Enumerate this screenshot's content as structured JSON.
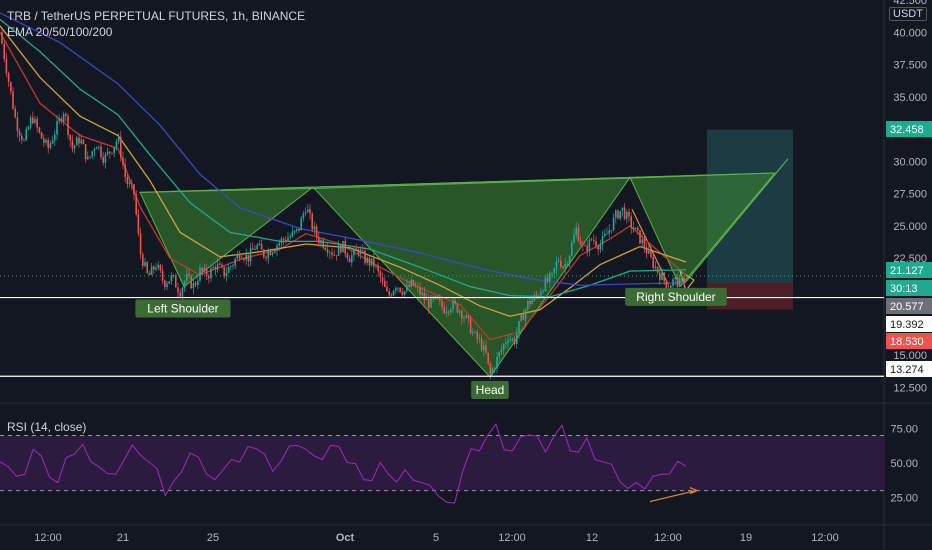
{
  "header": {
    "title": "TRB / TetherUS PERPETUAL FUTURES, 1h, BINANCE",
    "indicator": "EMA 20/50/100/200",
    "currency": "USDT",
    "rsi_label": "RSI (14, close)"
  },
  "colors": {
    "background": "#131722",
    "up": "#26a69a",
    "down": "#ef5350",
    "pattern_fill": "#3c8a2f",
    "label_bg": "#3d6b35",
    "ema20": "#c0392b",
    "ema50": "#d2a23c",
    "ema100": "#1fa98f",
    "ema200": "#3949c8",
    "rsi_line": "#9c27b0",
    "rsi_band": "#2a1b3f",
    "target_zone": "#1f4a4e",
    "stop_zone": "#5a1f26"
  },
  "chart_data": [
    {
      "type": "candlestick",
      "title": "TRB / TetherUS PERPETUAL FUTURES, 1h, BINANCE",
      "x_ticks": [
        "12:00",
        "21",
        "25",
        "Oct",
        "5",
        "12:00",
        "12",
        "12:00",
        "19",
        "12:00"
      ],
      "y_ticks": [
        12.5,
        15.0,
        17.5,
        20.0,
        22.5,
        25.0,
        27.5,
        30.0,
        32.5,
        35.0,
        37.5,
        40.0,
        42.5
      ],
      "ylim": [
        11.9,
        42.5
      ],
      "price_labels": [
        {
          "text": "32.458",
          "color": "#1fa98f"
        },
        {
          "text": "21.127",
          "color": "#1fa98f"
        },
        {
          "text": "30:13",
          "color": "#1fa98f"
        },
        {
          "text": "20.577",
          "color": "#6e7078"
        },
        {
          "text": "19.392",
          "color": "#ffffff"
        },
        {
          "text": "18.530",
          "color": "#ef5350"
        },
        {
          "text": "13.274",
          "color": "#ffffff"
        }
      ],
      "horizontal_lines": [
        19.45,
        13.35
      ],
      "annotations": [
        "Left Shoulder",
        "Head",
        "Right Shoulder"
      ],
      "pattern": "inverse head and shoulders",
      "neckline": {
        "from": 27.6,
        "to": 29.1
      },
      "ema_periods": [
        20,
        50,
        100,
        200
      ],
      "long_position": {
        "target": 32.458,
        "entry": 20.577,
        "stop": 18.53
      },
      "price_path": [
        [
          0,
          40.0
        ],
        [
          8,
          36.5
        ],
        [
          16,
          33.0
        ],
        [
          24,
          31.5
        ],
        [
          32,
          33.5
        ],
        [
          40,
          32.0
        ],
        [
          48,
          31.0
        ],
        [
          56,
          32.5
        ],
        [
          64,
          34.0
        ],
        [
          72,
          31.0
        ],
        [
          80,
          31.8
        ],
        [
          88,
          30.0
        ],
        [
          96,
          31.5
        ],
        [
          104,
          30.2
        ],
        [
          112,
          31.0
        ],
        [
          118,
          31.8
        ],
        [
          126,
          28.5
        ],
        [
          134,
          27.5
        ],
        [
          140,
          23.0
        ],
        [
          148,
          21.0
        ],
        [
          156,
          22.0
        ],
        [
          164,
          20.6
        ],
        [
          172,
          21.0
        ],
        [
          180,
          19.9
        ],
        [
          186,
          21.0
        ],
        [
          194,
          20.3
        ],
        [
          200,
          21.5
        ],
        [
          208,
          21.2
        ],
        [
          216,
          22.0
        ],
        [
          224,
          21.3
        ],
        [
          232,
          22.0
        ],
        [
          240,
          23.0
        ],
        [
          248,
          22.5
        ],
        [
          256,
          23.5
        ],
        [
          264,
          22.8
        ],
        [
          272,
          23.2
        ],
        [
          280,
          23.8
        ],
        [
          290,
          24.2
        ],
        [
          298,
          24.6
        ],
        [
          306,
          26.6
        ],
        [
          312,
          25.0
        ],
        [
          318,
          24.0
        ],
        [
          326,
          23.5
        ],
        [
          334,
          22.8
        ],
        [
          342,
          23.5
        ],
        [
          350,
          22.5
        ],
        [
          358,
          23.2
        ],
        [
          366,
          22.3
        ],
        [
          374,
          22.0
        ],
        [
          380,
          21.0
        ],
        [
          388,
          19.5
        ],
        [
          396,
          20.5
        ],
        [
          404,
          19.9
        ],
        [
          412,
          20.5
        ],
        [
          420,
          19.8
        ],
        [
          428,
          19.0
        ],
        [
          436,
          19.2
        ],
        [
          444,
          18.6
        ],
        [
          452,
          18.9
        ],
        [
          460,
          18.5
        ],
        [
          468,
          17.5
        ],
        [
          474,
          16.5
        ],
        [
          480,
          16.0
        ],
        [
          486,
          15.0
        ],
        [
          490,
          13.4
        ],
        [
          496,
          14.5
        ],
        [
          502,
          15.5
        ],
        [
          508,
          16.5
        ],
        [
          514,
          16.0
        ],
        [
          520,
          17.5
        ],
        [
          528,
          19.0
        ],
        [
          536,
          19.5
        ],
        [
          544,
          20.5
        ],
        [
          552,
          21.0
        ],
        [
          558,
          22.5
        ],
        [
          564,
          21.8
        ],
        [
          570,
          23.0
        ],
        [
          576,
          24.8
        ],
        [
          584,
          23.0
        ],
        [
          592,
          24.0
        ],
        [
          600,
          23.5
        ],
        [
          608,
          24.5
        ],
        [
          616,
          25.8
        ],
        [
          622,
          26.3
        ],
        [
          628,
          25.5
        ],
        [
          636,
          24.5
        ],
        [
          644,
          23.5
        ],
        [
          650,
          22.5
        ],
        [
          656,
          21.7
        ],
        [
          662,
          21.0
        ],
        [
          668,
          20.3
        ],
        [
          674,
          20.8
        ],
        [
          680,
          20.5
        ],
        [
          686,
          21.0
        ]
      ],
      "ema_paths": {
        "ema20": [
          [
            0,
            40.0
          ],
          [
            40,
            34.5
          ],
          [
            80,
            32.0
          ],
          [
            118,
            31.0
          ],
          [
            140,
            26.5
          ],
          [
            170,
            22.5
          ],
          [
            200,
            21.2
          ],
          [
            240,
            22.4
          ],
          [
            280,
            23.2
          ],
          [
            306,
            24.4
          ],
          [
            340,
            23.6
          ],
          [
            380,
            21.8
          ],
          [
            420,
            20.2
          ],
          [
            460,
            18.9
          ],
          [
            490,
            16.2
          ],
          [
            520,
            16.8
          ],
          [
            552,
            19.8
          ],
          [
            580,
            22.7
          ],
          [
            610,
            24.0
          ],
          [
            630,
            25.0
          ],
          [
            656,
            23.2
          ],
          [
            686,
            21.2
          ]
        ],
        "ema50": [
          [
            0,
            40.5
          ],
          [
            40,
            36.5
          ],
          [
            80,
            33.5
          ],
          [
            118,
            32.0
          ],
          [
            150,
            28.5
          ],
          [
            180,
            24.5
          ],
          [
            220,
            22.6
          ],
          [
            260,
            23.0
          ],
          [
            306,
            23.6
          ],
          [
            350,
            23.3
          ],
          [
            400,
            21.8
          ],
          [
            440,
            20.4
          ],
          [
            480,
            18.8
          ],
          [
            510,
            18.0
          ],
          [
            540,
            18.5
          ],
          [
            570,
            20.2
          ],
          [
            600,
            22.0
          ],
          [
            640,
            23.4
          ],
          [
            686,
            22.2
          ]
        ],
        "ema100": [
          [
            0,
            41.0
          ],
          [
            40,
            38.5
          ],
          [
            80,
            35.6
          ],
          [
            118,
            33.6
          ],
          [
            150,
            30.5
          ],
          [
            190,
            26.8
          ],
          [
            230,
            24.5
          ],
          [
            280,
            23.8
          ],
          [
            320,
            23.8
          ],
          [
            370,
            23.2
          ],
          [
            420,
            21.8
          ],
          [
            470,
            20.3
          ],
          [
            510,
            19.6
          ],
          [
            550,
            19.5
          ],
          [
            590,
            20.4
          ],
          [
            630,
            21.5
          ],
          [
            686,
            21.6
          ]
        ],
        "ema200": [
          [
            0,
            41.5
          ],
          [
            60,
            39.2
          ],
          [
            118,
            36.0
          ],
          [
            160,
            32.8
          ],
          [
            200,
            29.0
          ],
          [
            240,
            26.4
          ],
          [
            300,
            24.8
          ],
          [
            360,
            23.9
          ],
          [
            420,
            22.9
          ],
          [
            480,
            21.7
          ],
          [
            530,
            20.9
          ],
          [
            580,
            20.4
          ],
          [
            630,
            20.5
          ],
          [
            686,
            20.6
          ]
        ]
      }
    },
    {
      "type": "line",
      "title": "RSI (14, close)",
      "y_ticks": [
        25.0,
        50.0,
        75.0
      ],
      "ylim": [
        5,
        90
      ],
      "bands": [
        30,
        70
      ],
      "values": [
        55,
        48,
        38,
        45,
        60,
        52,
        42,
        35,
        50,
        58,
        62,
        55,
        48,
        40,
        45,
        52,
        60,
        58,
        50,
        42,
        28,
        35,
        48,
        58,
        52,
        45,
        38,
        42,
        55,
        50,
        58,
        62,
        55,
        48,
        52,
        60,
        66,
        60,
        52,
        55,
        62,
        58,
        52,
        48,
        42,
        38,
        48,
        45,
        36,
        42,
        40,
        35,
        30,
        28,
        20,
        25,
        45,
        58,
        62,
        70,
        75,
        62,
        58,
        65,
        72,
        68,
        62,
        70,
        75,
        62,
        58,
        65,
        55,
        50,
        45,
        38,
        30,
        40,
        32,
        38,
        45,
        42,
        48,
        50
      ]
    }
  ]
}
